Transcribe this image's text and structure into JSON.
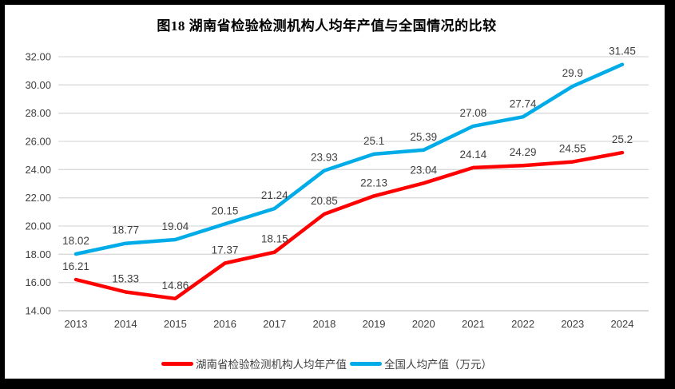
{
  "frame": {
    "border_color": "#000000",
    "background_color": "#FFFFFF"
  },
  "chart_data": {
    "type": "line",
    "title": "图18 湖南省检验检测机构人均年产值与全国情况的比较",
    "categories": [
      "2013",
      "2014",
      "2015",
      "2016",
      "2017",
      "2018",
      "2019",
      "2020",
      "2021",
      "2022",
      "2023",
      "2024"
    ],
    "series": [
      {
        "name": "湖南省检验检测机构人均年产值",
        "color": "#FF0000",
        "values": [
          16.21,
          15.33,
          14.86,
          17.37,
          18.15,
          20.85,
          22.13,
          23.04,
          24.14,
          24.29,
          24.55,
          25.2
        ],
        "labels": [
          "16.21",
          "15.33",
          "14.86",
          "17.37",
          "18.15",
          "20.85",
          "22.13",
          "23.04",
          "24.14",
          "24.29",
          "24.55",
          "25.2"
        ]
      },
      {
        "name": "全国人均产值（万元）",
        "color": "#00ACE8",
        "values": [
          18.02,
          18.77,
          19.04,
          20.15,
          21.24,
          23.93,
          25.1,
          25.39,
          27.08,
          27.74,
          29.9,
          31.45
        ],
        "labels": [
          "18.02",
          "18.77",
          "19.04",
          "20.15",
          "21.24",
          "23.93",
          "25.1",
          "25.39",
          "27.08",
          "27.74",
          "29.9",
          "31.45"
        ]
      }
    ],
    "xlabel": "",
    "ylabel": "",
    "ylim": [
      14,
      32
    ],
    "ytick_step": 2,
    "ytick_labels": [
      "14.00",
      "16.00",
      "18.00",
      "20.00",
      "22.00",
      "24.00",
      "26.00",
      "28.00",
      "30.00",
      "32.00"
    ],
    "grid": true,
    "gridline_color": "#D9D9D9",
    "axis_line_color": "#BFBFBF",
    "tick_label_color": "#404040",
    "data_label_color": "#404040",
    "legend_position": "bottom"
  }
}
